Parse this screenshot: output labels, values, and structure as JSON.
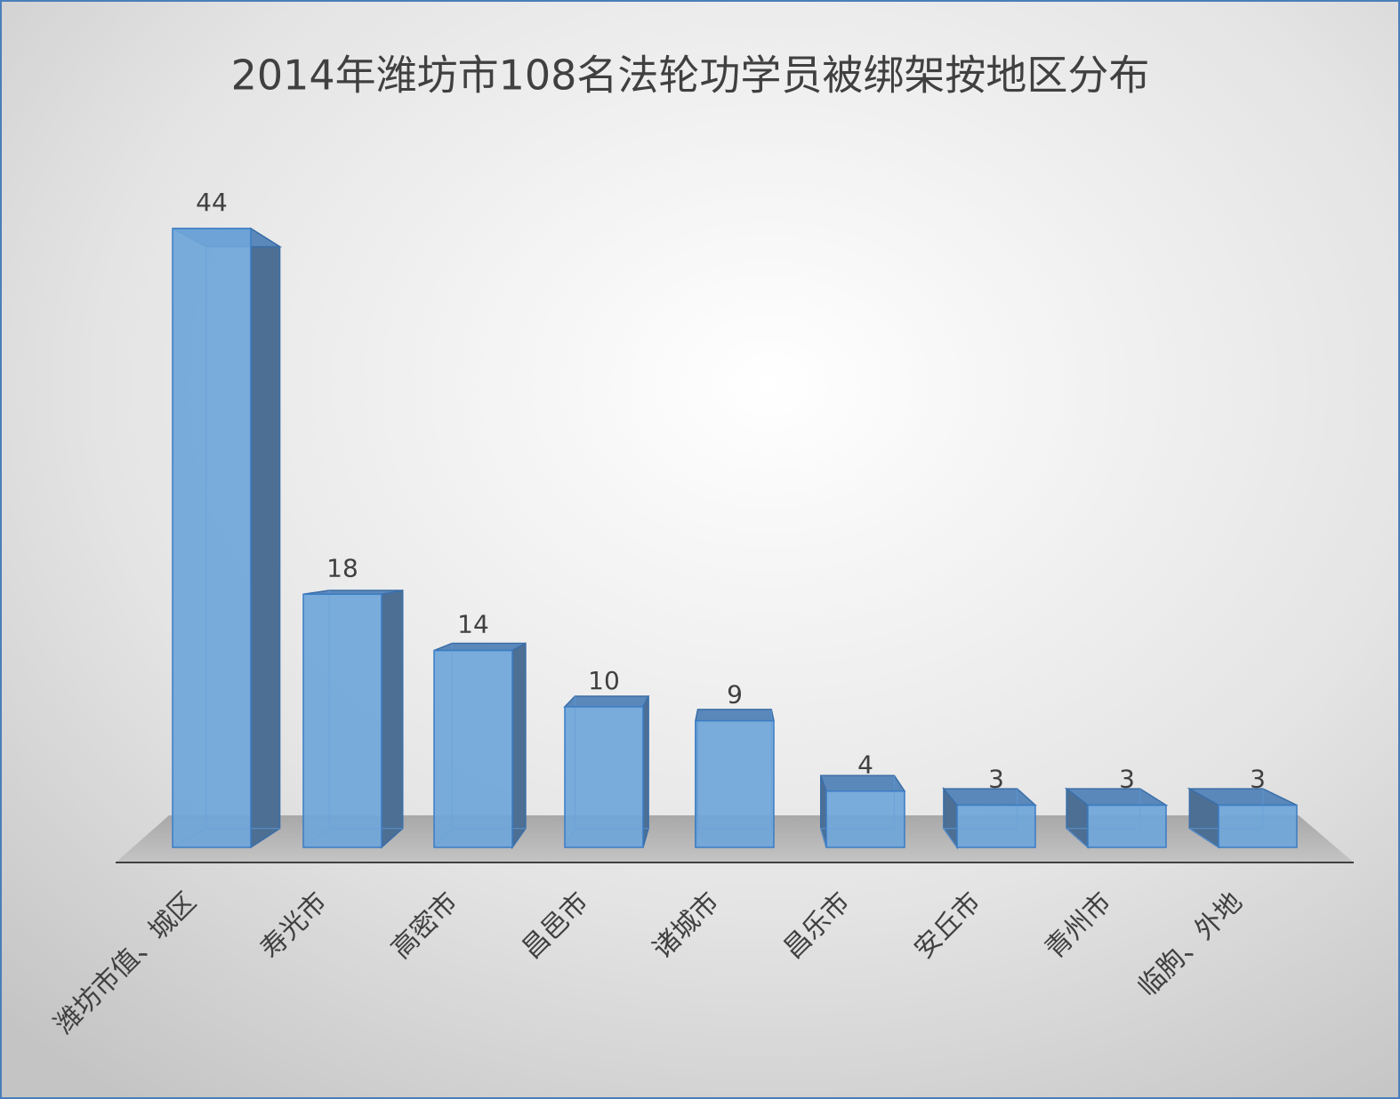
{
  "chart_data": {
    "type": "bar3d",
    "title": "2014年潍坊市108名法轮功学员被绑架按地区分布",
    "categories": [
      "潍坊市值、城区",
      "寿光市",
      "高密市",
      "昌邑市",
      "诸城市",
      "昌乐市",
      "安丘市",
      "青州市",
      "临朐、外地"
    ],
    "values": [
      44,
      18,
      14,
      10,
      9,
      4,
      3,
      3,
      3
    ],
    "color": "#6fa5d9"
  }
}
